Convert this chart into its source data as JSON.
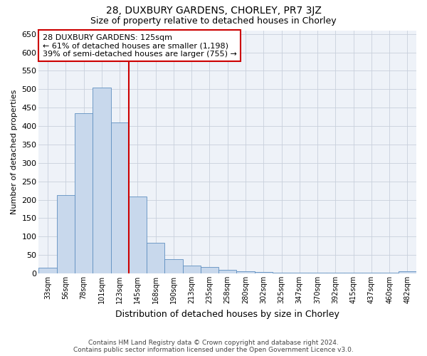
{
  "title": "28, DUXBURY GARDENS, CHORLEY, PR7 3JZ",
  "subtitle": "Size of property relative to detached houses in Chorley",
  "xlabel": "Distribution of detached houses by size in Chorley",
  "ylabel": "Number of detached properties",
  "footnote1": "Contains HM Land Registry data © Crown copyright and database right 2024.",
  "footnote2": "Contains public sector information licensed under the Open Government Licence v3.0.",
  "bar_labels": [
    "33sqm",
    "56sqm",
    "78sqm",
    "101sqm",
    "123sqm",
    "145sqm",
    "168sqm",
    "190sqm",
    "213sqm",
    "235sqm",
    "258sqm",
    "280sqm",
    "302sqm",
    "325sqm",
    "347sqm",
    "370sqm",
    "392sqm",
    "415sqm",
    "437sqm",
    "460sqm",
    "482sqm"
  ],
  "bar_values": [
    15,
    212,
    435,
    505,
    410,
    208,
    83,
    38,
    22,
    18,
    10,
    5,
    3,
    2,
    2,
    2,
    2,
    2,
    2,
    2,
    5
  ],
  "bar_color": "#c8d8ec",
  "bar_edge_color": "#6090c0",
  "vline_x_bar_idx": 4,
  "vline_color": "#cc0000",
  "annotation_line1": "28 DUXBURY GARDENS: 125sqm",
  "annotation_line2": "← 61% of detached houses are smaller (1,198)",
  "annotation_line3": "39% of semi-detached houses are larger (755) →",
  "annotation_box_color": "#cc0000",
  "ylim": [
    0,
    660
  ],
  "yticks": [
    0,
    50,
    100,
    150,
    200,
    250,
    300,
    350,
    400,
    450,
    500,
    550,
    600,
    650
  ],
  "grid_color": "#c8d0dc",
  "background_color": "#eef2f8",
  "title_fontsize": 10,
  "subtitle_fontsize": 9,
  "ylabel_fontsize": 8,
  "xlabel_fontsize": 9,
  "footnote_fontsize": 6.5,
  "ytick_fontsize": 8,
  "xtick_fontsize": 7
}
